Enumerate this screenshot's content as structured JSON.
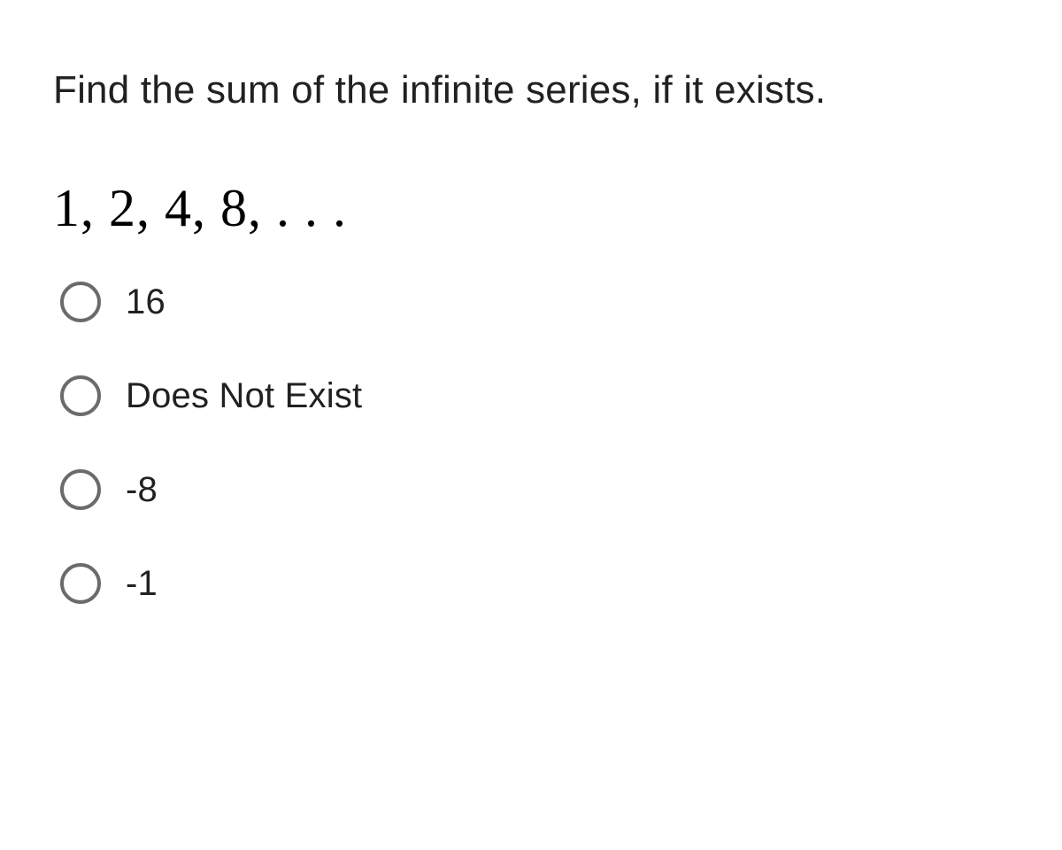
{
  "question": {
    "prompt": "Find the sum of the infinite series, if it exists.",
    "series": "1, 2, 4, 8, . . .",
    "options": [
      {
        "label": "16"
      },
      {
        "label": "Does Not Exist"
      },
      {
        "label": "-8"
      },
      {
        "label": "-1"
      }
    ]
  },
  "styles": {
    "background_color": "#ffffff",
    "text_color": "#212121",
    "radio_border_color": "#6b6b6b",
    "question_fontsize": 44,
    "series_fontsize": 60,
    "option_fontsize": 40,
    "series_font_family": "Times New Roman"
  }
}
